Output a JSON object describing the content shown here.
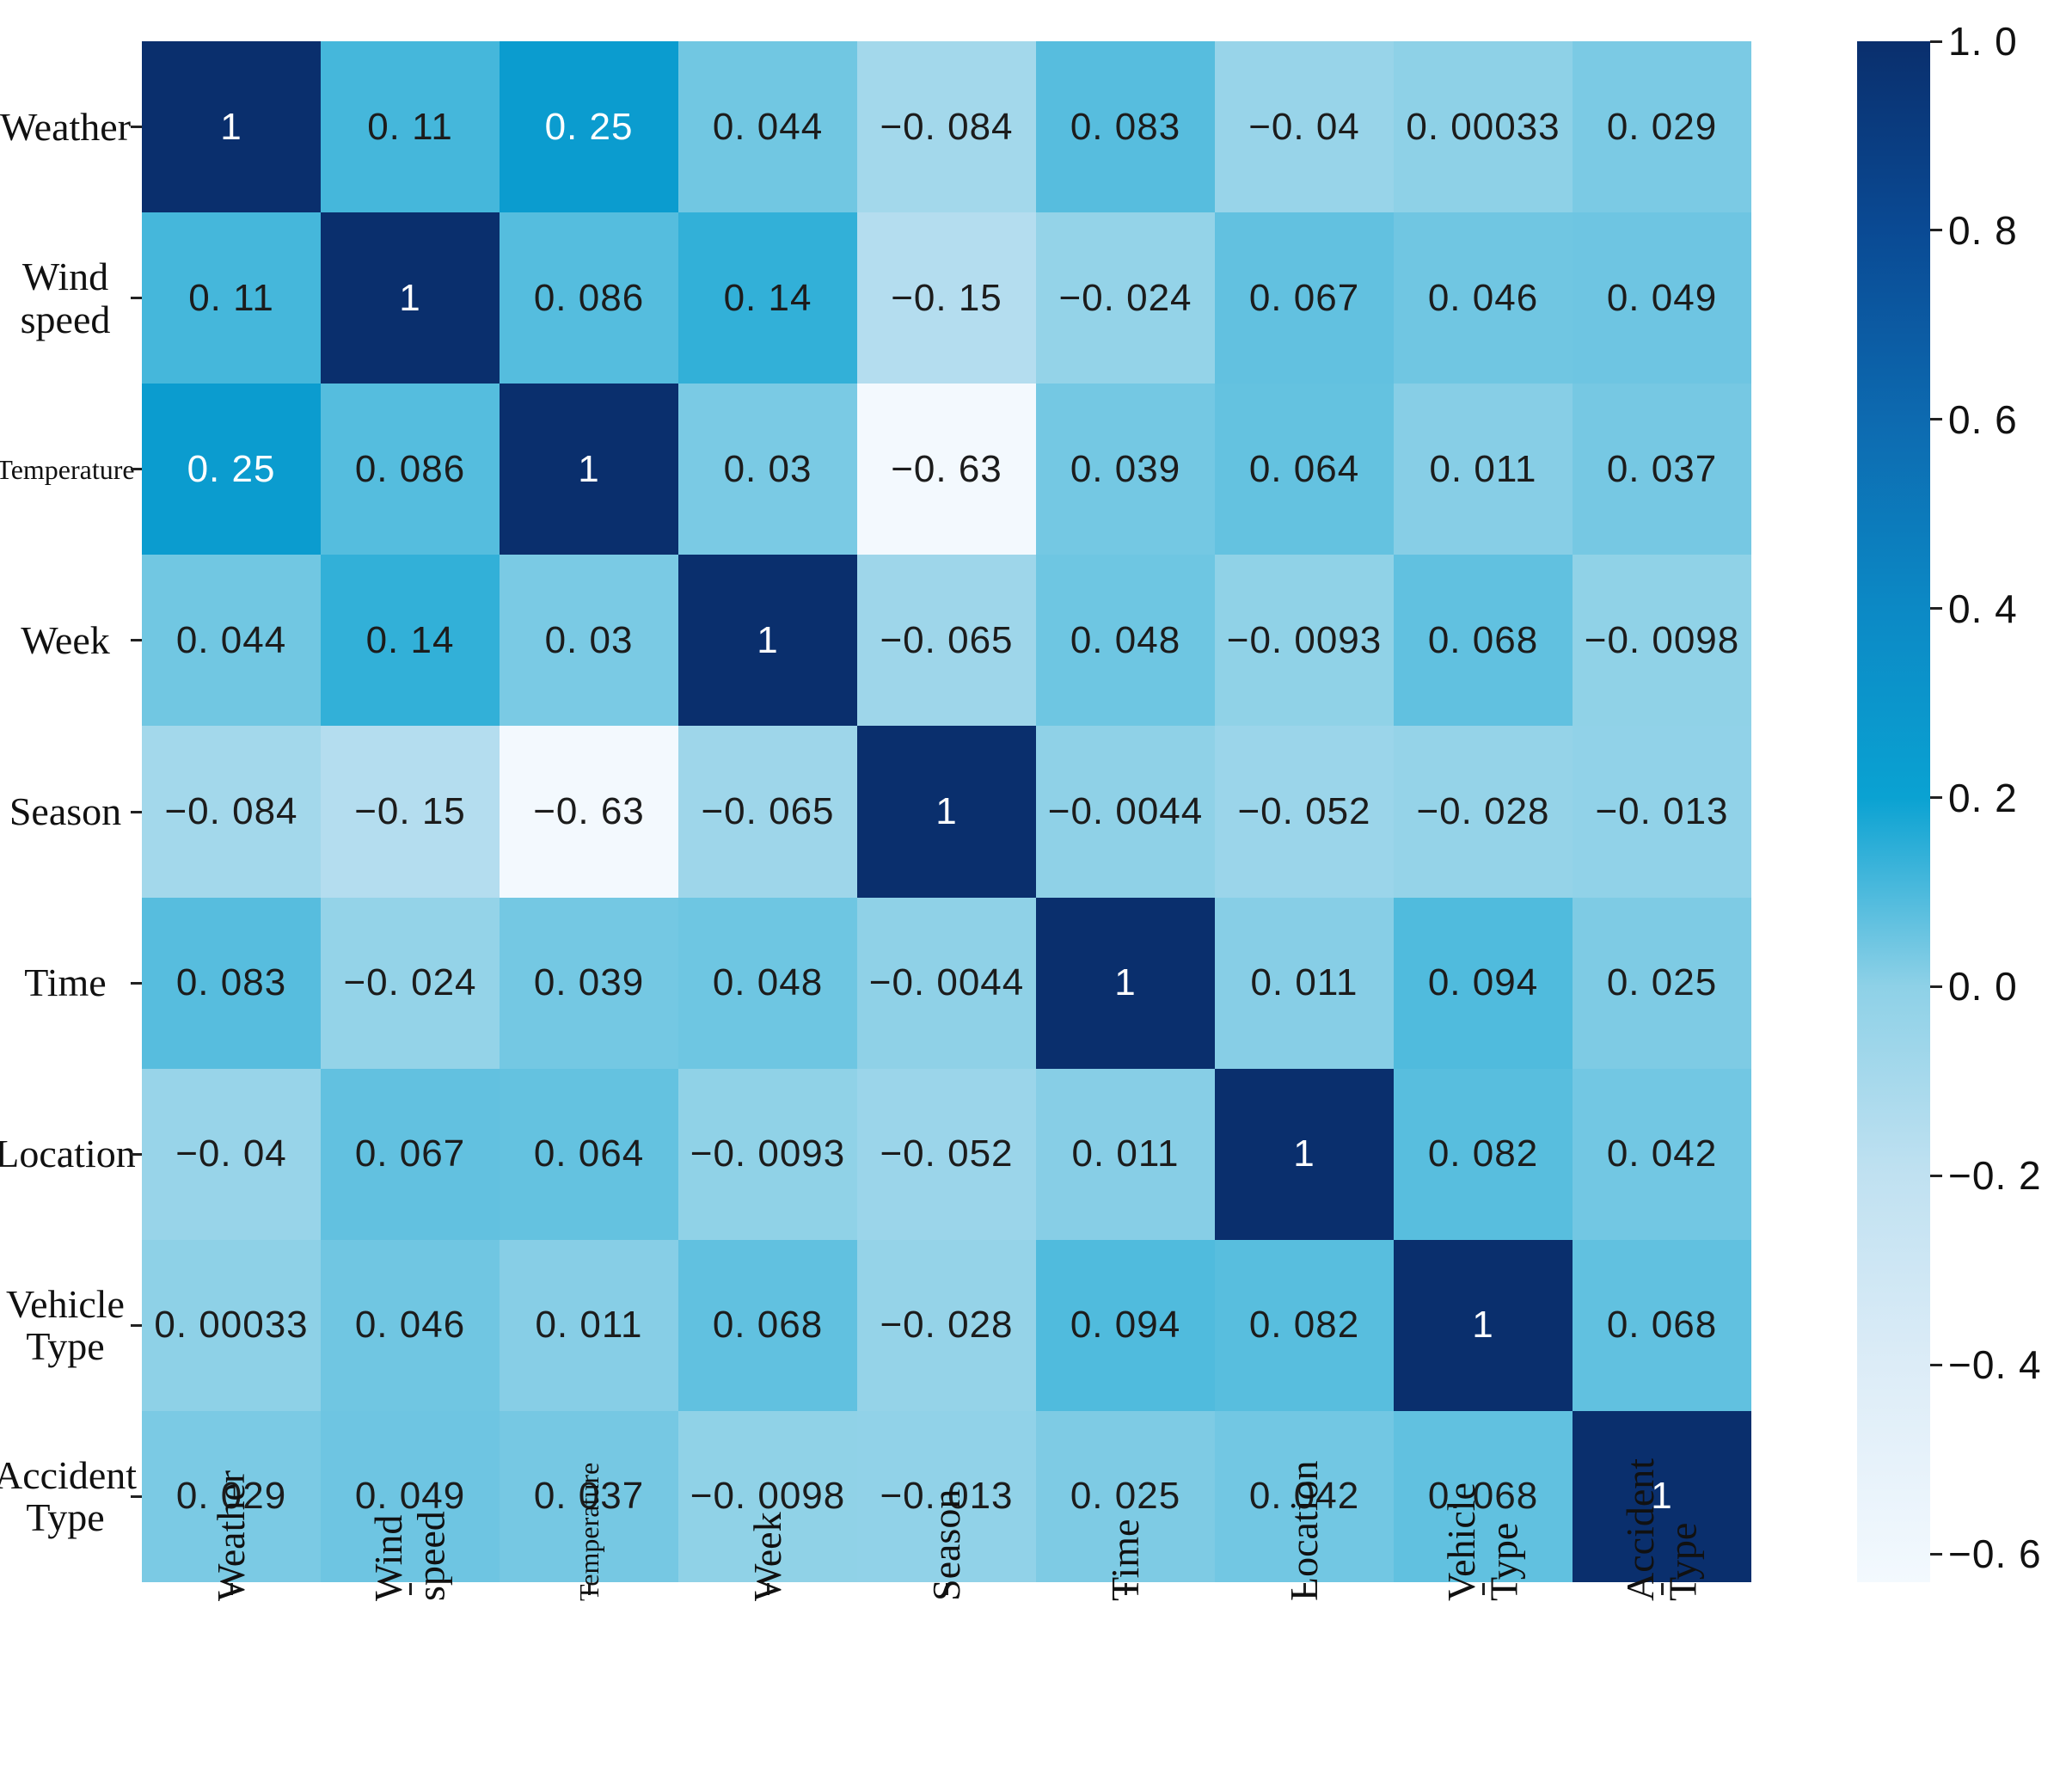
{
  "chart_data": {
    "type": "heatmap",
    "title": "",
    "xlabel": "",
    "ylabel": "",
    "legend_position": "right-colorbar",
    "grid": false,
    "vmin": -0.63,
    "vmax": 1.0,
    "variables": [
      {
        "label": "Weather",
        "lines": [
          "Weather"
        ],
        "scale": 1
      },
      {
        "label": "Wind speed",
        "lines": [
          "Wind",
          "speed"
        ],
        "scale": 1
      },
      {
        "label": "Temperature",
        "lines": [
          "Temperature"
        ],
        "scale": 0.7
      },
      {
        "label": "Week",
        "lines": [
          "Week"
        ],
        "scale": 1
      },
      {
        "label": "Season",
        "lines": [
          "Season"
        ],
        "scale": 1
      },
      {
        "label": "Time",
        "lines": [
          "Time"
        ],
        "scale": 1
      },
      {
        "label": "Location",
        "lines": [
          "Location"
        ],
        "scale": 1
      },
      {
        "label": "Vehicle Type",
        "lines": [
          "Vehicle",
          "Type"
        ],
        "scale": 1
      },
      {
        "label": "Accident Type",
        "lines": [
          "Accident",
          "Type"
        ],
        "scale": 1
      }
    ],
    "matrix": [
      [
        1,
        0.11,
        0.25,
        0.044,
        -0.084,
        0.083,
        -0.04,
        0.00033,
        0.029
      ],
      [
        0.11,
        1,
        0.086,
        0.14,
        -0.15,
        -0.024,
        0.067,
        0.046,
        0.049
      ],
      [
        0.25,
        0.086,
        1,
        0.03,
        -0.63,
        0.039,
        0.064,
        0.011,
        0.037
      ],
      [
        0.044,
        0.14,
        0.03,
        1,
        -0.065,
        0.048,
        -0.0093,
        0.068,
        -0.0098
      ],
      [
        -0.084,
        -0.15,
        -0.63,
        -0.065,
        1,
        -0.0044,
        -0.052,
        -0.028,
        -0.013
      ],
      [
        0.083,
        -0.024,
        0.039,
        0.048,
        -0.0044,
        1,
        0.011,
        0.094,
        0.025
      ],
      [
        -0.04,
        0.067,
        0.064,
        -0.0093,
        -0.052,
        0.011,
        1,
        0.082,
        0.042
      ],
      [
        0.00033,
        0.046,
        0.011,
        0.068,
        -0.028,
        0.094,
        0.082,
        1,
        0.068
      ],
      [
        0.029,
        0.049,
        0.037,
        -0.0098,
        -0.013,
        0.025,
        0.042,
        0.068,
        1
      ]
    ],
    "display": [
      [
        "1",
        "0. 11",
        "0. 25",
        "0. 044",
        "−0. 084",
        "0. 083",
        "−0. 04",
        "0. 00033",
        "0. 029"
      ],
      [
        "0. 11",
        "1",
        "0. 086",
        "0. 14",
        "−0. 15",
        "−0. 024",
        "0. 067",
        "0. 046",
        "0. 049"
      ],
      [
        "0. 25",
        "0. 086",
        "1",
        "0. 03",
        "−0. 63",
        "0. 039",
        "0. 064",
        "0. 011",
        "0. 037"
      ],
      [
        "0. 044",
        "0. 14",
        "0. 03",
        "1",
        "−0. 065",
        "0. 048",
        "−0. 0093",
        "0. 068",
        "−0. 0098"
      ],
      [
        "−0. 084",
        "−0. 15",
        "−0. 63",
        "−0. 065",
        "1",
        "−0. 0044",
        "−0. 052",
        "−0. 028",
        "−0. 013"
      ],
      [
        "0. 083",
        "−0. 024",
        "0. 039",
        "0. 048",
        "−0. 0044",
        "1",
        "0. 011",
        "0. 094",
        "0. 025"
      ],
      [
        "−0. 04",
        "0. 067",
        "0. 064",
        "−0. 0093",
        "−0. 052",
        "0. 011",
        "1",
        "0. 082",
        "0. 042"
      ],
      [
        "0. 00033",
        "0. 046",
        "0. 011",
        "0. 068",
        "−0. 028",
        "0. 094",
        "0. 082",
        "1",
        "0. 068"
      ],
      [
        "0. 029",
        "0. 049",
        "0. 037",
        "−0. 0098",
        "−0. 013",
        "0. 025",
        "0. 042",
        "0. 068",
        "1"
      ]
    ],
    "colormap_stops": [
      {
        "value": -0.63,
        "color": "#f3f9fe"
      },
      {
        "value": -0.4,
        "color": "#dcecf7"
      },
      {
        "value": -0.2,
        "color": "#c0e1f1"
      },
      {
        "value": 0.0,
        "color": "#8ed1e7"
      },
      {
        "value": 0.2,
        "color": "#0aa2d2"
      },
      {
        "value": 0.4,
        "color": "#0c89c5"
      },
      {
        "value": 0.6,
        "color": "#0d6ab0"
      },
      {
        "value": 0.8,
        "color": "#0a4a94"
      },
      {
        "value": 1.0,
        "color": "#0a2f6d"
      }
    ],
    "colorbar_ticks": [
      {
        "value": 1.0,
        "label": "1. 0"
      },
      {
        "value": 0.8,
        "label": "0. 8"
      },
      {
        "value": 0.6,
        "label": "0. 6"
      },
      {
        "value": 0.4,
        "label": "0. 4"
      },
      {
        "value": 0.2,
        "label": "0. 2"
      },
      {
        "value": 0.0,
        "label": "0. 0"
      },
      {
        "value": -0.2,
        "label": "−0. 2"
      },
      {
        "value": -0.4,
        "label": "−0. 4"
      },
      {
        "value": -0.6,
        "label": "−0. 6"
      }
    ],
    "white_text_min_value": 0.2,
    "text_color": "#1c1c1c",
    "white_text_color": "#ffffff",
    "accent_dark": "#0a2f6d",
    "background": "#ffffff"
  }
}
